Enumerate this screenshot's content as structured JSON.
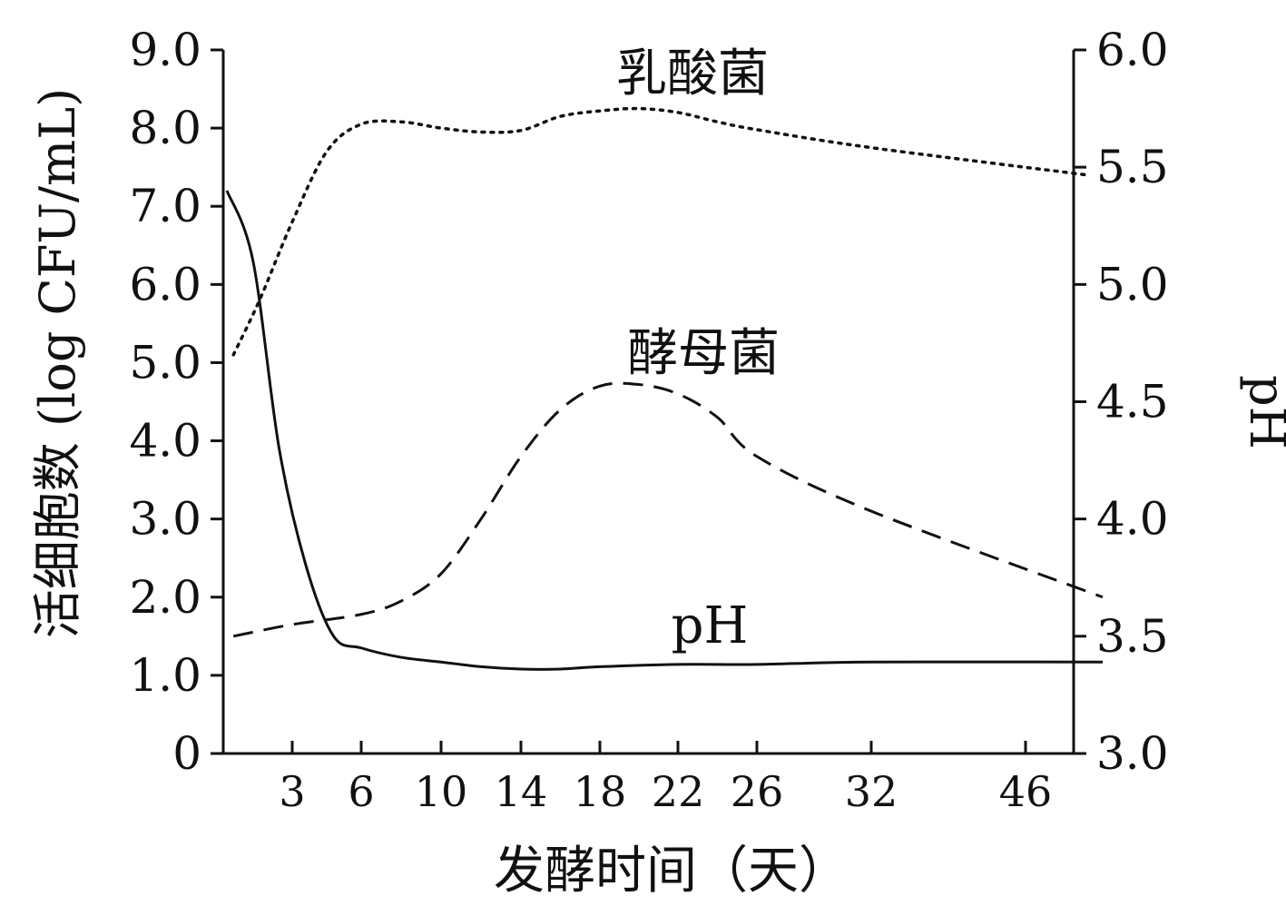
{
  "chart_data": {
    "type": "line",
    "xlabel": "发酵时间（天）",
    "ylabel": "活细胞数 (log CFU/mL)",
    "y2label": "pH",
    "ylim": [
      0,
      9.0
    ],
    "y2lim": [
      3.0,
      6.0
    ],
    "xticks": [
      "3",
      "6",
      "10",
      "14",
      "18",
      "22",
      "26",
      "32",
      "46"
    ],
    "yticks": [
      "0",
      "1.0",
      "2.0",
      "3.0",
      "4.0",
      "5.0",
      "6.0",
      "7.0",
      "8.0",
      "9.0"
    ],
    "y2ticks": [
      "3.0",
      "3.5",
      "4.0",
      "4.5",
      "5.0",
      "5.5",
      "6.0"
    ],
    "series": [
      {
        "name": "乳酸菌",
        "axis": "left",
        "style": "dotted",
        "x_ticks_index": [
          0.1,
          0.5,
          1,
          1.5,
          2,
          2.5,
          3,
          3.5,
          4,
          4.5,
          5,
          5.5,
          6,
          6.5,
          7,
          8,
          9.4
        ],
        "values": [
          5.1,
          5.8,
          6.8,
          7.7,
          8.05,
          8.08,
          8.0,
          7.95,
          7.97,
          8.15,
          8.22,
          8.25,
          8.2,
          8.08,
          7.98,
          7.75,
          7.4
        ]
      },
      {
        "name": "酵母菌",
        "axis": "left",
        "style": "dashed",
        "x_ticks_index": [
          0.1,
          1,
          2,
          2.5,
          3,
          3.5,
          4,
          4.5,
          5,
          5.5,
          6,
          6.5,
          7,
          8,
          9.5
        ],
        "values": [
          1.5,
          1.65,
          1.78,
          1.95,
          2.3,
          3.0,
          3.8,
          4.4,
          4.7,
          4.72,
          4.6,
          4.3,
          3.8,
          3.1,
          2.0
        ]
      },
      {
        "name": "pH",
        "axis": "right",
        "style": "solid",
        "x_ticks_index": [
          0,
          0.4,
          0.8,
          1.2,
          1.6,
          2,
          2.5,
          3,
          3.5,
          4,
          4.5,
          5,
          6,
          7,
          8,
          9.5
        ],
        "values": [
          5.4,
          5.1,
          4.3,
          3.8,
          3.5,
          3.45,
          3.41,
          3.39,
          3.37,
          3.36,
          3.36,
          3.37,
          3.38,
          3.38,
          3.39,
          3.39
        ]
      }
    ],
    "labels": {
      "lactic": "乳酸菌",
      "yeast": "酵母菌",
      "ph": "pH"
    },
    "grid": false
  }
}
